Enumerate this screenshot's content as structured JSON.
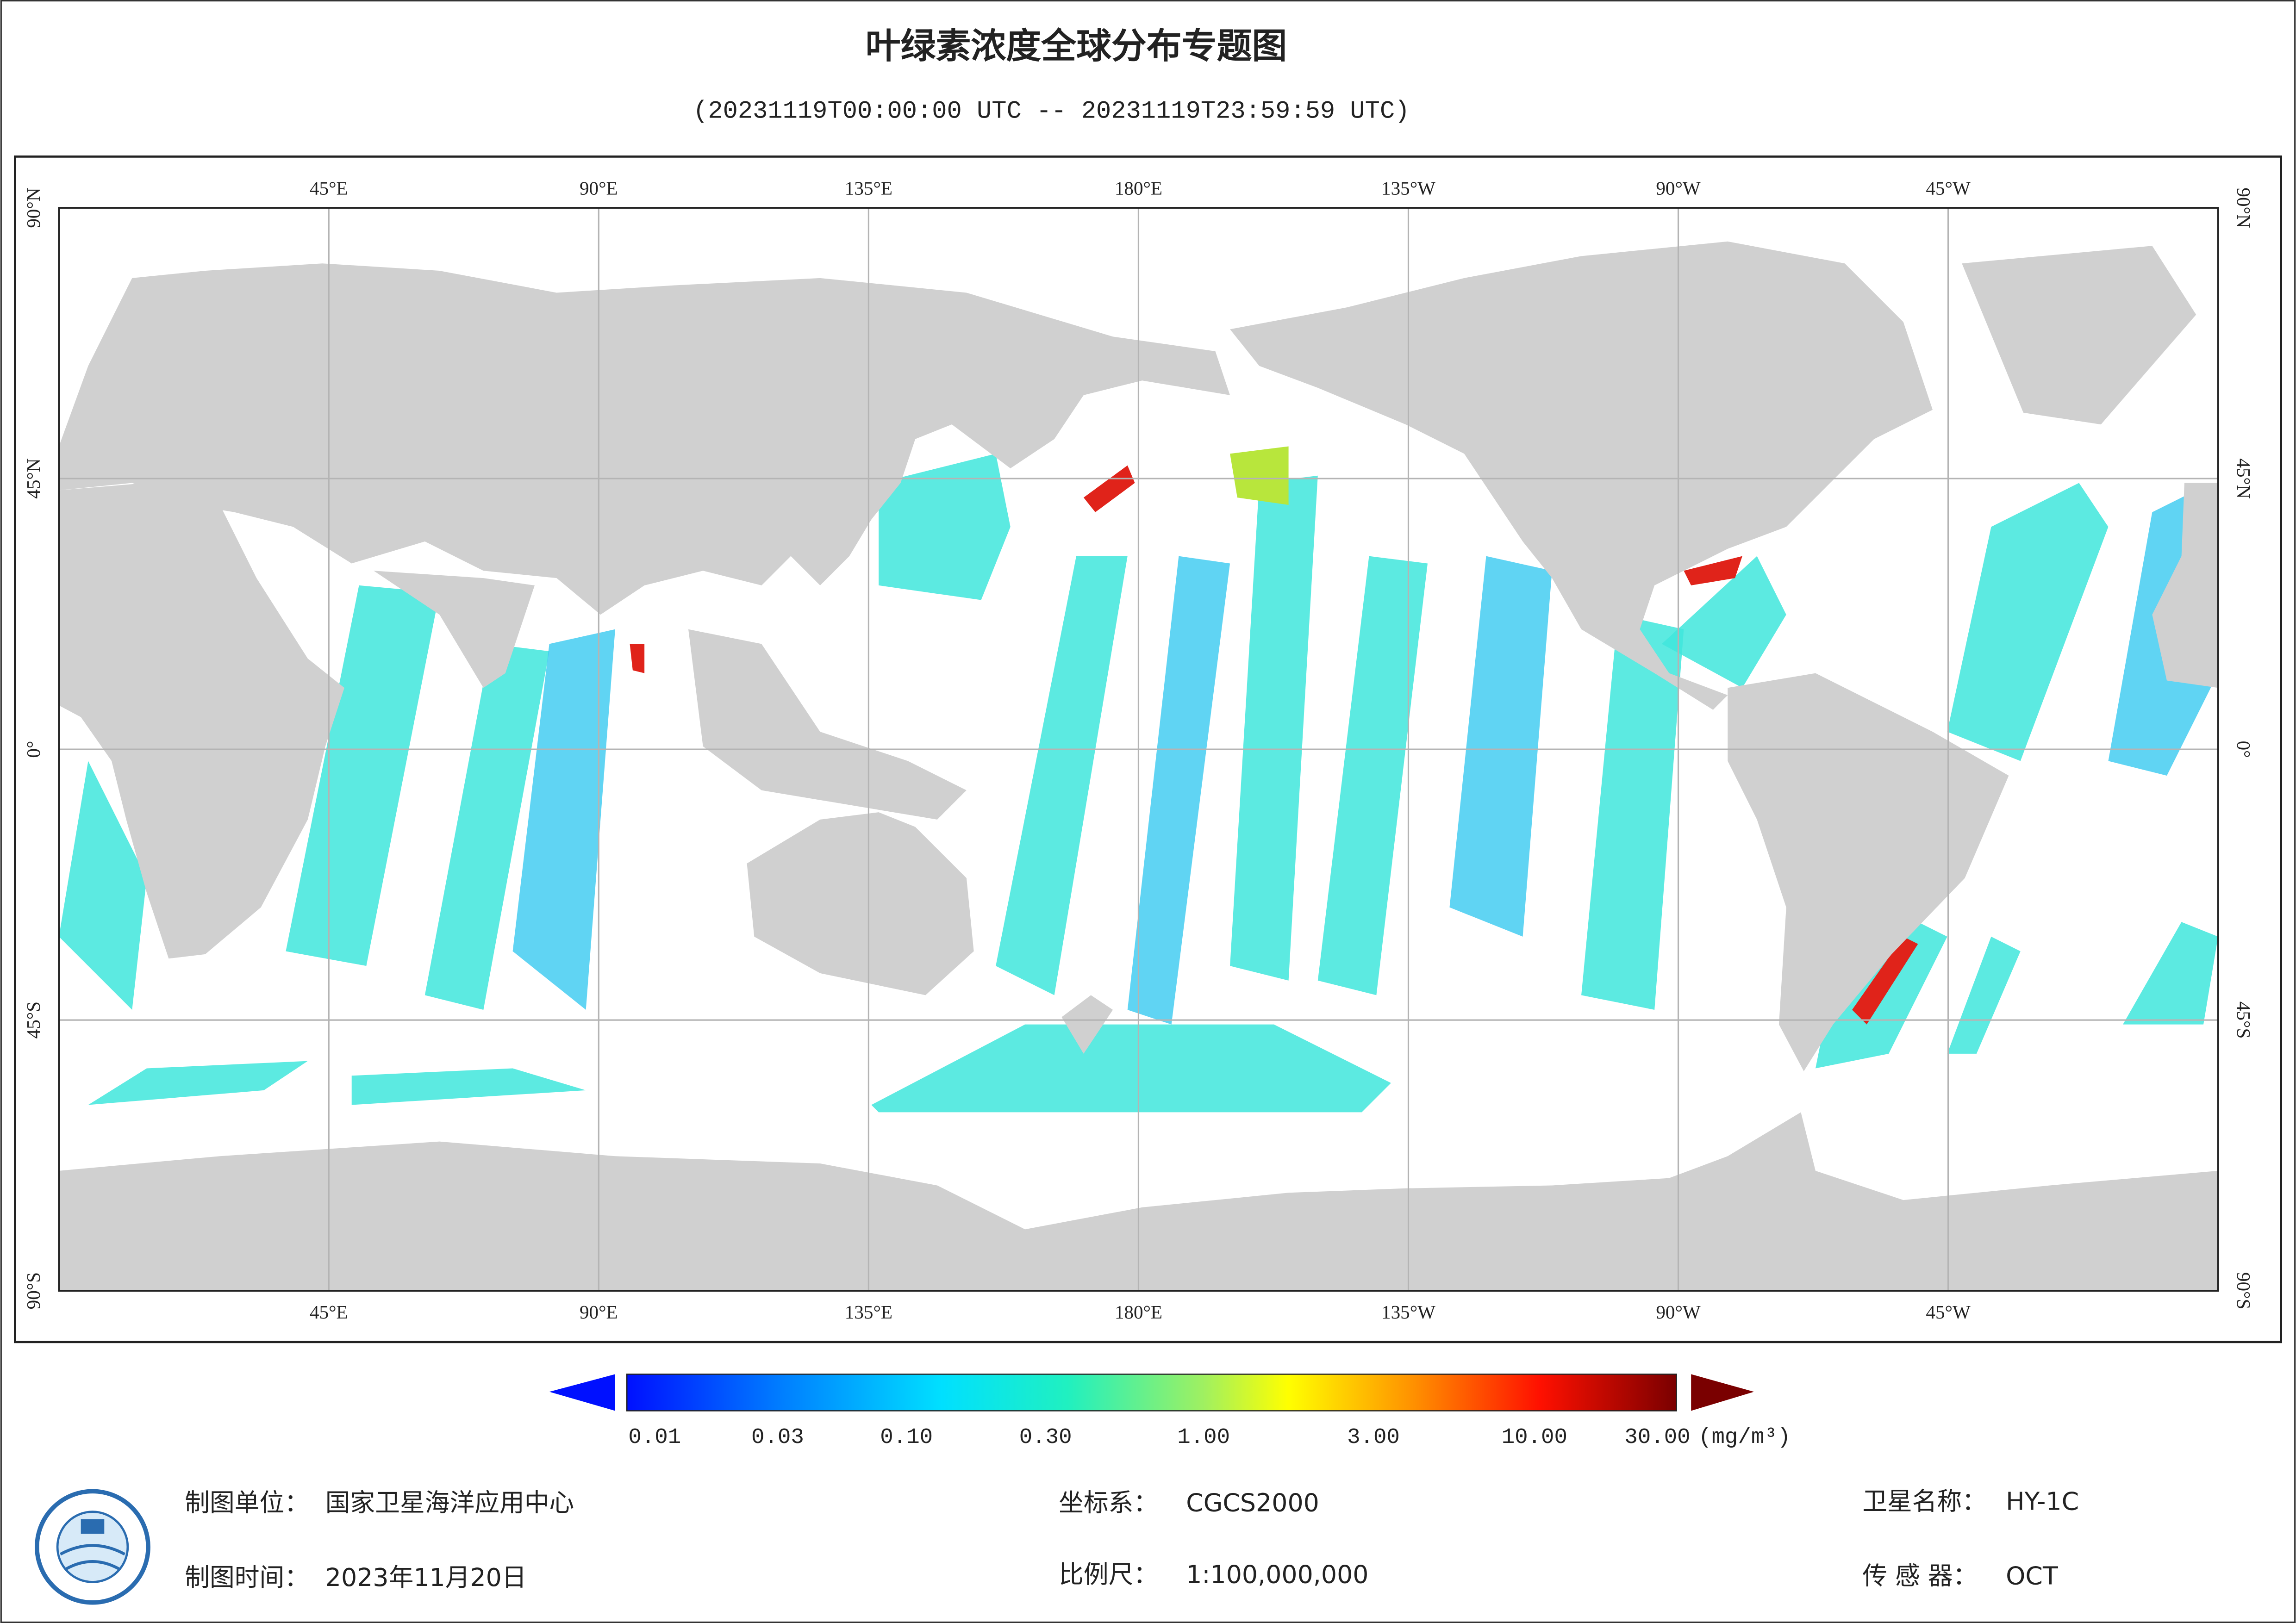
{
  "header": {
    "title": "叶绿素浓度全球分布专题图",
    "subtitle": "(20231119T00:00:00 UTC -- 20231119T23:59:59 UTC)"
  },
  "map": {
    "lon_labels": [
      "45°E",
      "90°E",
      "135°E",
      "180°E",
      "135°W",
      "90°W",
      "45°W"
    ],
    "lat_labels": [
      "90°N",
      "45°N",
      "0°",
      "45°S",
      "90°S"
    ]
  },
  "legend": {
    "ticks": [
      "0.01",
      "0.03",
      "0.10",
      "0.30",
      "1.00",
      "3.00",
      "10.00",
      "30.00"
    ],
    "unit": "(mg/m³)"
  },
  "footer": {
    "producer_label": "制图单位：",
    "producer": "国家卫星海洋应用中心",
    "date_label": "制图时间：",
    "date": "2023年11月20日",
    "crs_label": "坐标系：",
    "crs": "CGCS2000",
    "scale_label": "比例尺：",
    "scale": "1:100,000,000",
    "satellite_label": "卫星名称：",
    "satellite": "HY-1C",
    "sensor_label": "传 感 器：",
    "sensor": "OCT"
  }
}
